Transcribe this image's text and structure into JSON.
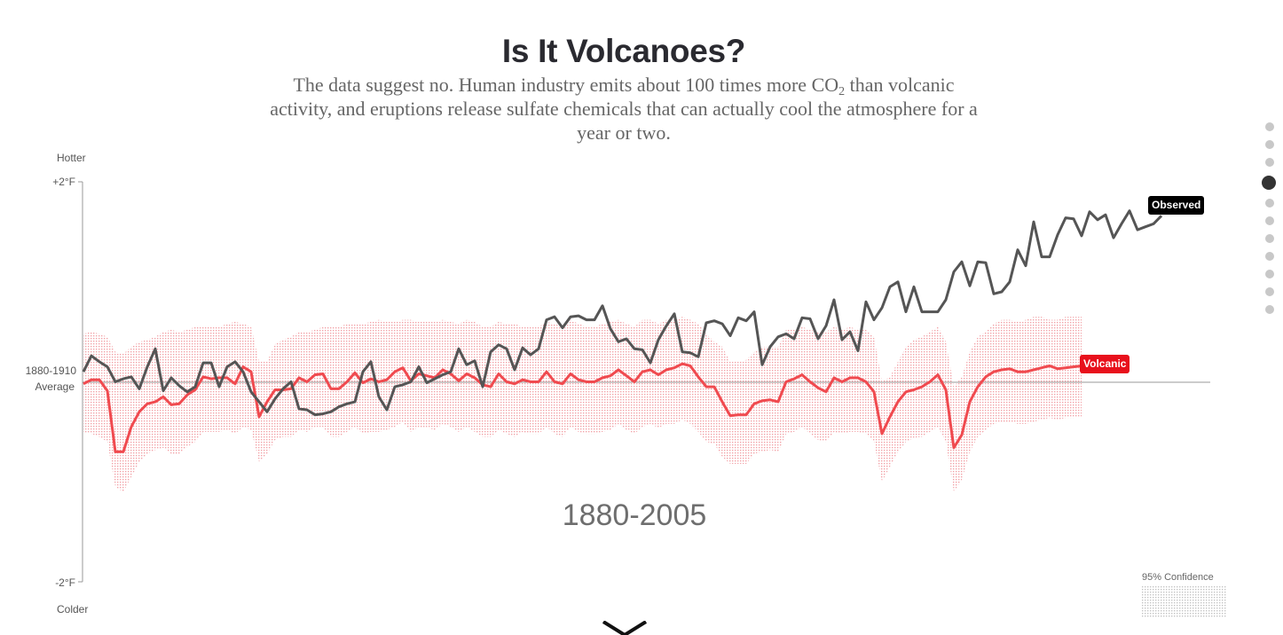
{
  "header": {
    "title": "Is It Volcanoes?",
    "subtitle_part1": "The data suggest no. Human industry emits about 100 times more CO",
    "subtitle_sub": "2",
    "subtitle_part2": " than volcanic activity, and eruptions release sulfate chemicals that can actually cool the atmosphere for a year or two."
  },
  "nav": {
    "total": 11,
    "active_index": 3
  },
  "chart_data": {
    "type": "line",
    "ytop_label": "Hotter",
    "ybottom_label": "Colder",
    "ytick_top": "+2°F",
    "ytick_bottom": "-2°F",
    "baseline_label_line1": "1880-1910",
    "baseline_label_line2": "Average",
    "era_label": "1880-2005",
    "confidence_label": "95% Confidence",
    "ylim": [
      -2,
      2
    ],
    "colors": {
      "observed": "#555555",
      "volcanic": "#f04a4f",
      "confidence": "#f2a8ac"
    },
    "series": [
      {
        "name": "Observed",
        "x_start": 1880,
        "values": [
          0.1,
          0.26,
          0.2,
          0.15,
          0.0,
          0.03,
          0.05,
          -0.07,
          0.15,
          0.33,
          -0.09,
          0.04,
          -0.04,
          -0.1,
          -0.05,
          0.19,
          0.19,
          -0.05,
          0.15,
          0.2,
          0.1,
          -0.1,
          -0.2,
          -0.3,
          -0.17,
          -0.07,
          0.0,
          -0.27,
          -0.28,
          -0.33,
          -0.32,
          -0.3,
          -0.25,
          -0.22,
          -0.2,
          0.1,
          0.2,
          -0.15,
          -0.28,
          -0.05,
          -0.03,
          0.0,
          0.15,
          -0.01,
          0.03,
          0.07,
          0.1,
          0.33,
          0.17,
          0.21,
          -0.05,
          0.3,
          0.37,
          0.33,
          0.12,
          0.34,
          0.27,
          0.33,
          0.62,
          0.65,
          0.54,
          0.65,
          0.66,
          0.62,
          0.62,
          0.76,
          0.53,
          0.4,
          0.43,
          0.33,
          0.32,
          0.19,
          0.42,
          0.56,
          0.68,
          0.3,
          0.29,
          0.25,
          0.59,
          0.61,
          0.58,
          0.46,
          0.64,
          0.61,
          0.7,
          0.17,
          0.35,
          0.45,
          0.48,
          0.43,
          0.64,
          0.63,
          0.43,
          0.56,
          0.82,
          0.42,
          0.5,
          0.31,
          0.8,
          0.62,
          0.74,
          0.95,
          1.0,
          0.7,
          0.95,
          0.7,
          0.7,
          0.7,
          0.82,
          1.1,
          1.2,
          0.96,
          1.2,
          1.19,
          0.88,
          0.9,
          1.0,
          1.32,
          1.16,
          1.6,
          1.25,
          1.25,
          1.47,
          1.64,
          1.63,
          1.46,
          1.7,
          1.62,
          1.67,
          1.44,
          1.58,
          1.71,
          1.52,
          1.55,
          1.58,
          1.66
        ]
      },
      {
        "name": "Volcanic",
        "x_start": 1880,
        "values": [
          -0.02,
          0.02,
          0.02,
          -0.09,
          -0.7,
          -0.7,
          -0.45,
          -0.3,
          -0.22,
          -0.2,
          -0.15,
          -0.23,
          -0.22,
          -0.13,
          -0.08,
          0.05,
          0.03,
          0.04,
          0.04,
          -0.02,
          0.15,
          0.1,
          -0.35,
          -0.2,
          -0.08,
          -0.08,
          -0.07,
          0.04,
          0.0,
          0.07,
          0.08,
          -0.07,
          -0.07,
          0.0,
          0.09,
          -0.01,
          0.03,
          0.0,
          0.02,
          0.1,
          0.14,
          0.01,
          0.08,
          0.06,
          0.04,
          0.12,
          0.08,
          0.01,
          0.08,
          0.04,
          -0.03,
          -0.05,
          0.08,
          0.0,
          -0.02,
          0.02,
          0.0,
          0.0,
          0.1,
          0.0,
          -0.02,
          0.08,
          0.02,
          0.0,
          0.0,
          0.04,
          0.06,
          0.12,
          0.06,
          0.0,
          0.1,
          0.12,
          0.07,
          0.12,
          0.14,
          0.18,
          0.16,
          0.05,
          -0.05,
          -0.05,
          -0.2,
          -0.34,
          -0.33,
          -0.33,
          -0.22,
          -0.19,
          -0.18,
          -0.2,
          0.0,
          0.03,
          0.07,
          0.0,
          -0.06,
          -0.1,
          0.04,
          0.0,
          0.04,
          0.04,
          0.0,
          -0.1,
          -0.52,
          -0.35,
          -0.2,
          -0.1,
          -0.08,
          -0.05,
          0.0,
          0.07,
          -0.08,
          -0.66,
          -0.53,
          -0.2,
          -0.05,
          0.05,
          0.1,
          0.12,
          0.13,
          0.1,
          0.1,
          0.12,
          0.14,
          0.16,
          0.13,
          0.14,
          0.15,
          0.16
        ]
      }
    ],
    "confidence_band": {
      "x_start": 1880,
      "upper": [
        0.48,
        0.5,
        0.48,
        0.45,
        0.3,
        0.28,
        0.35,
        0.4,
        0.42,
        0.45,
        0.5,
        0.52,
        0.5,
        0.52,
        0.55,
        0.55,
        0.55,
        0.55,
        0.58,
        0.6,
        0.58,
        0.55,
        0.2,
        0.2,
        0.38,
        0.42,
        0.45,
        0.5,
        0.5,
        0.52,
        0.55,
        0.55,
        0.55,
        0.58,
        0.58,
        0.58,
        0.6,
        0.62,
        0.6,
        0.6,
        0.62,
        0.62,
        0.6,
        0.6,
        0.6,
        0.62,
        0.6,
        0.58,
        0.62,
        0.6,
        0.55,
        0.55,
        0.6,
        0.58,
        0.58,
        0.55,
        0.55,
        0.55,
        0.6,
        0.58,
        0.55,
        0.62,
        0.58,
        0.55,
        0.55,
        0.58,
        0.6,
        0.62,
        0.58,
        0.55,
        0.62,
        0.62,
        0.58,
        0.62,
        0.62,
        0.65,
        0.62,
        0.58,
        0.48,
        0.4,
        0.35,
        0.2,
        0.2,
        0.22,
        0.3,
        0.35,
        0.35,
        0.35,
        0.52,
        0.52,
        0.55,
        0.52,
        0.5,
        0.5,
        0.55,
        0.52,
        0.55,
        0.52,
        0.52,
        0.45,
        0.0,
        0.05,
        0.2,
        0.35,
        0.42,
        0.45,
        0.5,
        0.55,
        0.4,
        -0.05,
        0.05,
        0.3,
        0.45,
        0.5,
        0.58,
        0.62,
        0.62,
        0.6,
        0.62,
        0.65,
        0.65,
        0.62,
        0.62,
        0.65,
        0.65,
        0.65
      ],
      "lower": [
        -0.5,
        -0.52,
        -0.55,
        -0.6,
        -1.05,
        -1.1,
        -0.95,
        -0.8,
        -0.72,
        -0.68,
        -0.66,
        -0.72,
        -0.72,
        -0.65,
        -0.6,
        -0.5,
        -0.5,
        -0.5,
        -0.48,
        -0.52,
        -0.45,
        -0.48,
        -0.8,
        -0.72,
        -0.58,
        -0.55,
        -0.55,
        -0.48,
        -0.5,
        -0.45,
        -0.45,
        -0.55,
        -0.55,
        -0.5,
        -0.45,
        -0.52,
        -0.5,
        -0.5,
        -0.48,
        -0.45,
        -0.4,
        -0.5,
        -0.45,
        -0.46,
        -0.48,
        -0.42,
        -0.45,
        -0.5,
        -0.45,
        -0.5,
        -0.55,
        -0.55,
        -0.48,
        -0.52,
        -0.55,
        -0.5,
        -0.52,
        -0.52,
        -0.45,
        -0.52,
        -0.55,
        -0.45,
        -0.5,
        -0.52,
        -0.52,
        -0.5,
        -0.48,
        -0.42,
        -0.48,
        -0.52,
        -0.45,
        -0.42,
        -0.46,
        -0.42,
        -0.42,
        -0.38,
        -0.42,
        -0.5,
        -0.6,
        -0.62,
        -0.75,
        -0.82,
        -0.82,
        -0.82,
        -0.72,
        -0.7,
        -0.68,
        -0.7,
        -0.52,
        -0.5,
        -0.45,
        -0.52,
        -0.58,
        -0.6,
        -0.5,
        -0.52,
        -0.5,
        -0.5,
        -0.52,
        -0.6,
        -1.0,
        -0.85,
        -0.7,
        -0.6,
        -0.56,
        -0.55,
        -0.5,
        -0.45,
        -0.6,
        -1.1,
        -0.98,
        -0.7,
        -0.55,
        -0.48,
        -0.42,
        -0.4,
        -0.4,
        -0.42,
        -0.42,
        -0.4,
        -0.38,
        -0.36,
        -0.38,
        -0.36,
        -0.36,
        -0.35
      ]
    }
  }
}
